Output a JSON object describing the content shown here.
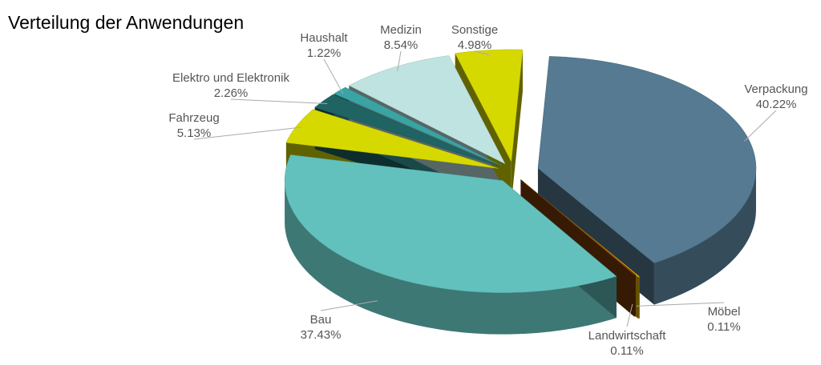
{
  "chart_data": {
    "type": "pie",
    "title": "Verteilung der Anwendungen",
    "categories": [
      "Verpackung",
      "Möbel",
      "Landwirtschaft",
      "Bau",
      "Fahrzeug",
      "Elektro und Elektronik",
      "Haushalt",
      "Medizin",
      "Sonstige"
    ],
    "values": [
      40.22,
      0.11,
      0.11,
      37.43,
      5.13,
      2.26,
      1.22,
      8.54,
      4.98
    ],
    "value_labels": [
      "40.22%",
      "0.11%",
      "0.11%",
      "37.43%",
      "5.13%",
      "2.26%",
      "1.22%",
      "8.54%",
      "4.98%"
    ],
    "colors": [
      "#557a92",
      "#e2b400",
      "#7a3a08",
      "#62c1bd",
      "#d6d900",
      "#1f6363",
      "#3aa3a3",
      "#bfe3e0",
      "#d6d900"
    ]
  }
}
